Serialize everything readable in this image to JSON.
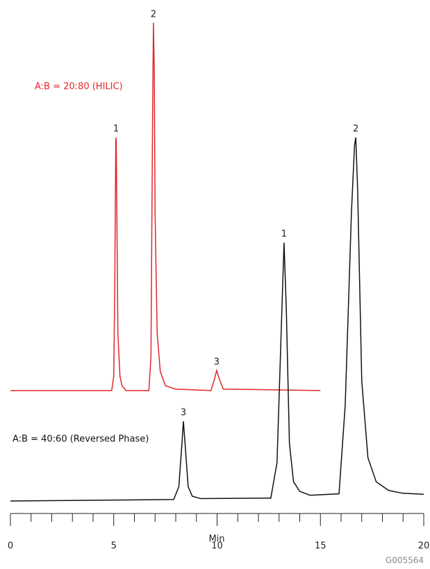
{
  "chart_data": {
    "type": "line",
    "xlabel": "Min",
    "footnote": "G005564",
    "xlim": [
      0,
      20
    ],
    "xticks": [
      0,
      5,
      10,
      15,
      20
    ],
    "xminorticks": [
      1,
      2,
      3,
      4,
      6,
      7,
      8,
      9,
      11,
      12,
      13,
      14,
      16,
      17,
      18,
      19
    ],
    "ylim": [
      0,
      100
    ],
    "series": [
      {
        "name": "A:B = 20:80 (HILIC)",
        "color": "#e0262b",
        "x": [
          0,
          4.9,
          5.0,
          5.05,
          5.1,
          5.12,
          5.15,
          5.2,
          5.3,
          5.4,
          5.6,
          6.7,
          6.8,
          6.88,
          6.92,
          6.96,
          7.0,
          7.1,
          7.25,
          7.5,
          8.0,
          9.7,
          9.85,
          9.98,
          10.1,
          10.3,
          15
        ],
        "values": [
          23,
          23,
          26,
          45,
          75.7,
          75,
          60,
          35,
          26,
          24,
          23,
          23,
          30,
          80,
          99.6,
          90,
          60,
          35,
          27,
          24,
          23.3,
          23,
          25,
          27.2,
          25.5,
          23.3,
          23
        ],
        "peak_labels": [
          {
            "x": 5.11,
            "label": "1"
          },
          {
            "x": 6.92,
            "label": "2"
          },
          {
            "x": 9.98,
            "label": "3"
          }
        ]
      },
      {
        "name": "A:B = 40:60 (Reversed Phase)",
        "color": "#111111",
        "x": [
          0,
          7.9,
          8.15,
          8.3,
          8.37,
          8.45,
          8.6,
          8.8,
          9.2,
          12.6,
          12.9,
          13.1,
          13.24,
          13.35,
          13.5,
          13.7,
          14.0,
          14.5,
          15.9,
          16.2,
          16.5,
          16.65,
          16.71,
          16.8,
          17.0,
          17.3,
          17.7,
          18.3,
          19.0,
          20
        ],
        "values": [
          0,
          0.3,
          3,
          12,
          16.6,
          12,
          3,
          1,
          0.5,
          0.6,
          8,
          35,
          53.8,
          40,
          12,
          4,
          2,
          1.2,
          1.5,
          20,
          60,
          74,
          75.7,
          65,
          25,
          9,
          4,
          2.2,
          1.6,
          1.4
        ],
        "peak_labels": [
          {
            "x": 8.37,
            "label": "3"
          },
          {
            "x": 13.24,
            "label": "1"
          },
          {
            "x": 16.71,
            "label": "2"
          }
        ]
      }
    ]
  }
}
